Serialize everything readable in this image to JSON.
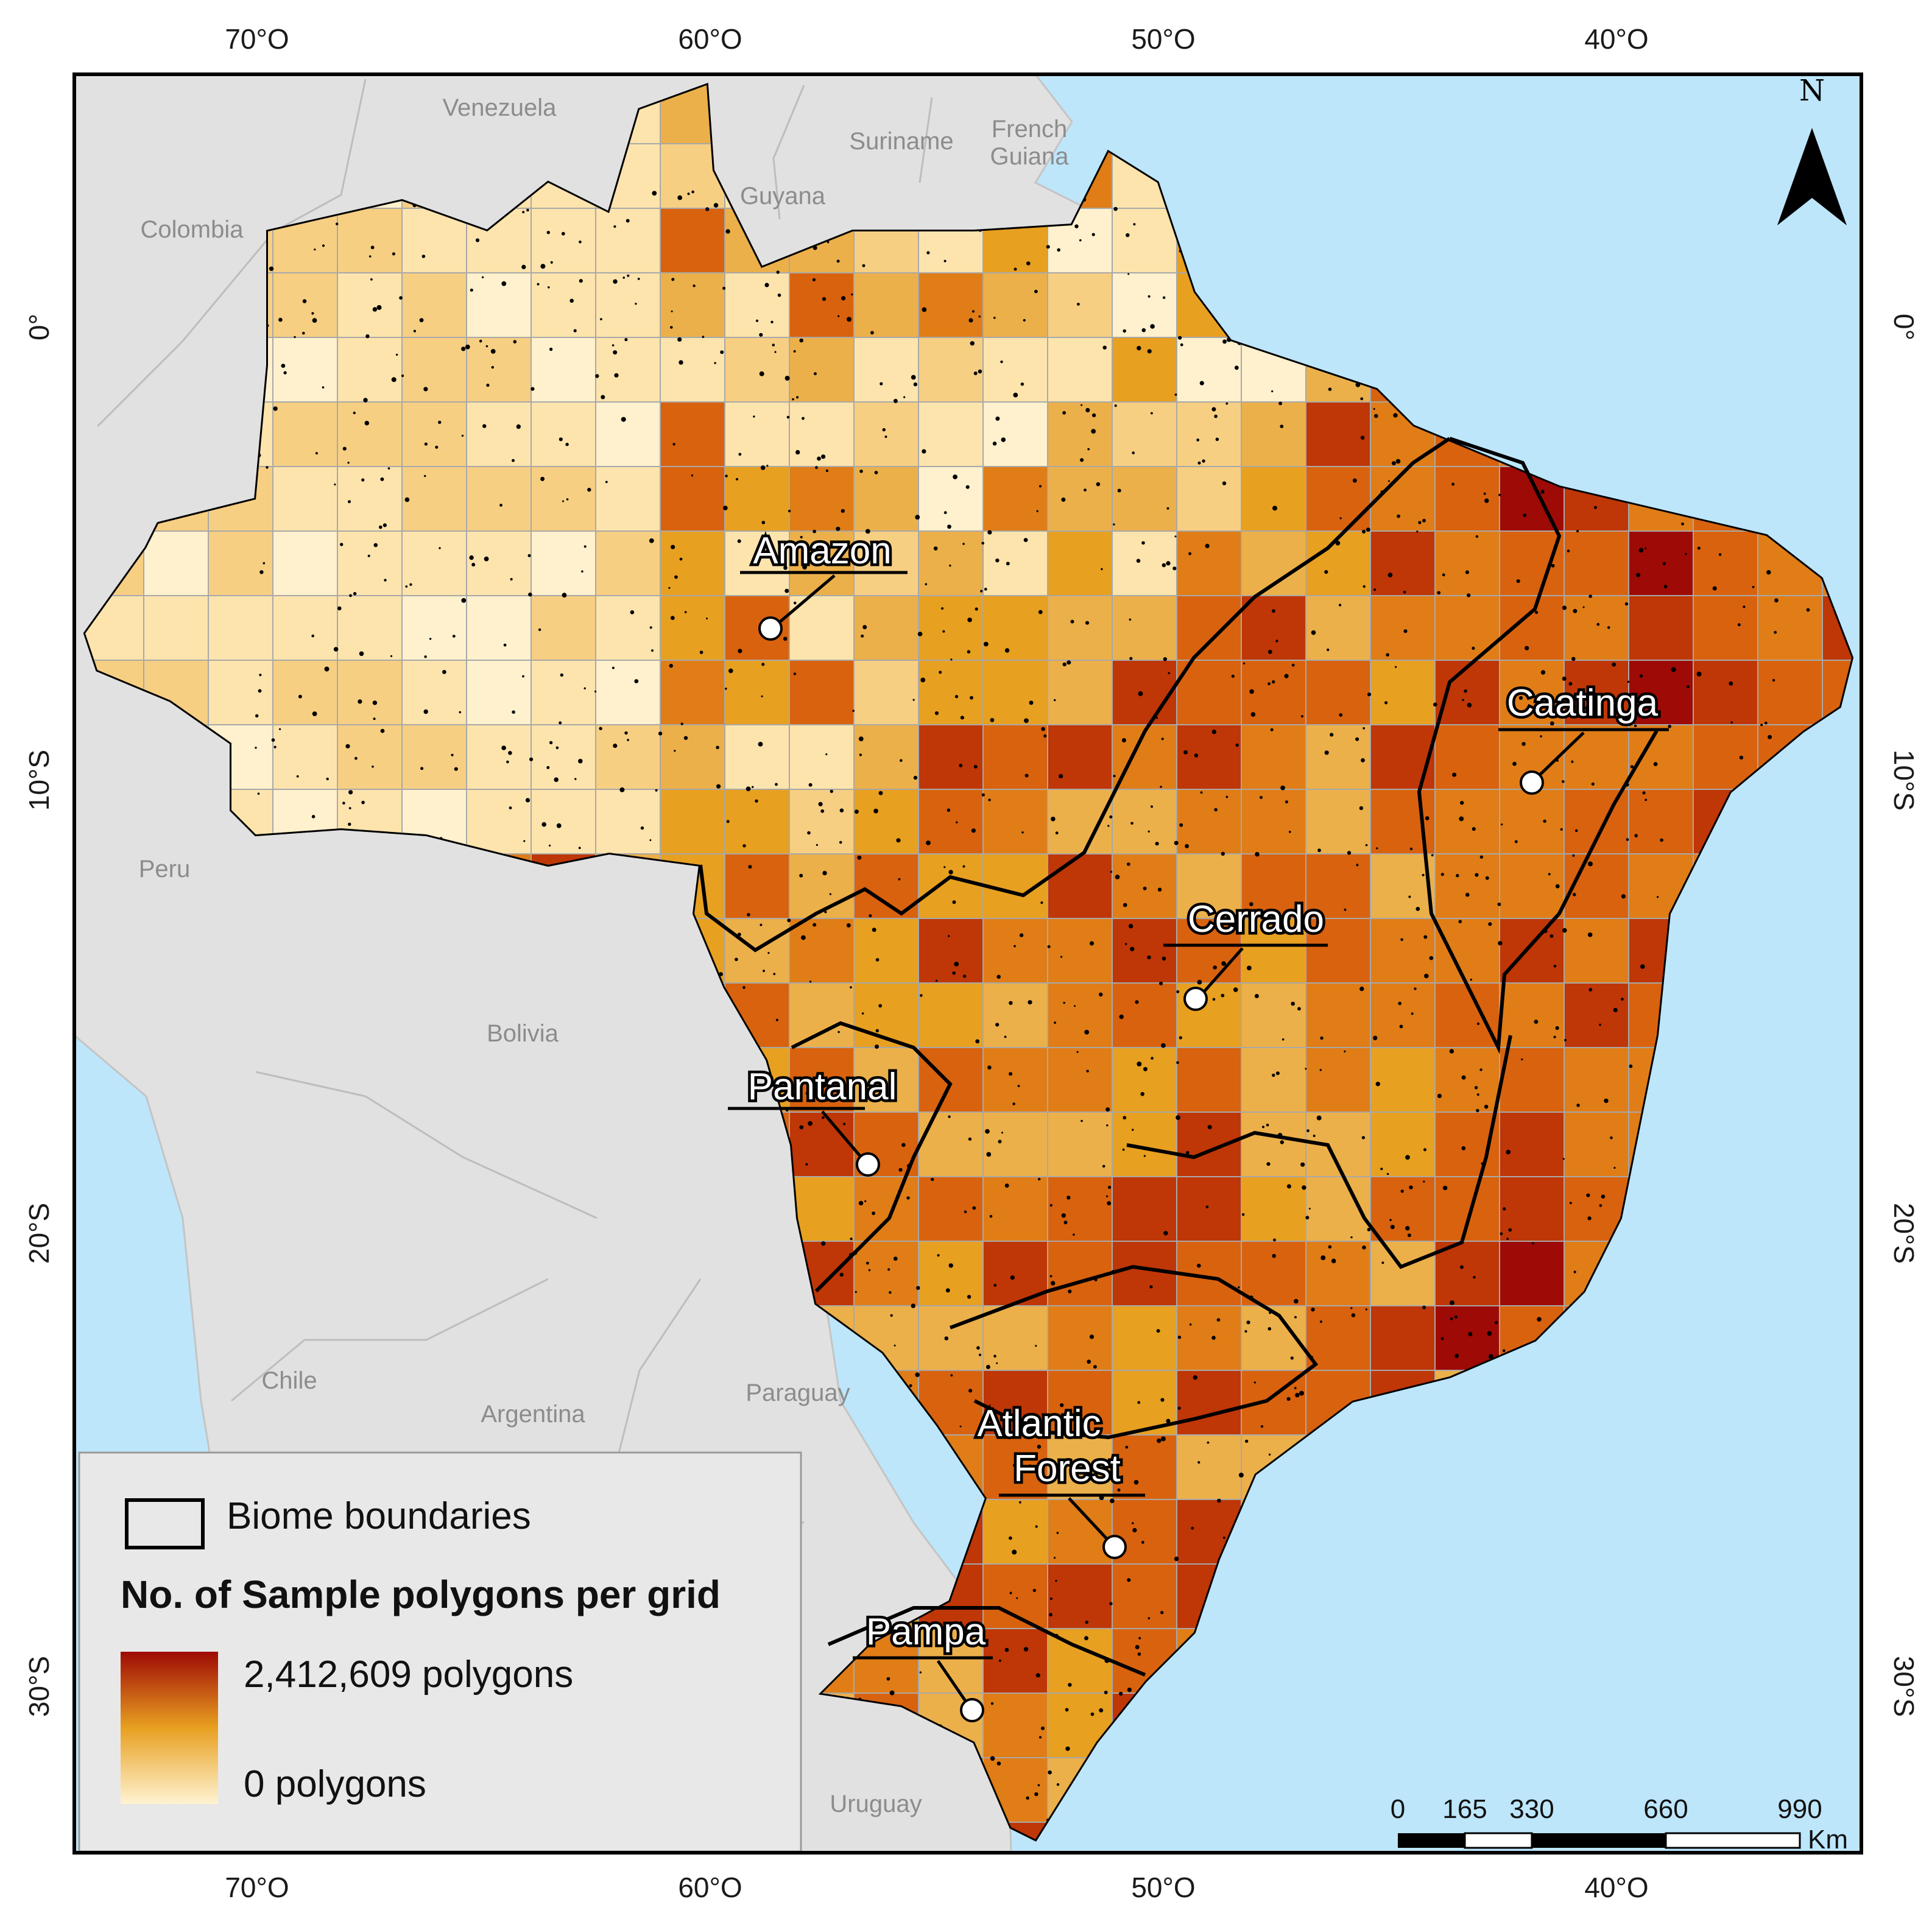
{
  "map": {
    "countries": [
      "Venezuela",
      "Suriname",
      "French Guiana",
      "Guyana",
      "Colombia",
      "Peru",
      "Bolivia",
      "Chile",
      "Argentina",
      "Paraguay",
      "Uruguay"
    ],
    "biomes": [
      "Amazon",
      "Caatinga",
      "Cerrado",
      "Pantanal",
      "Atlantic Forest",
      "Pampa"
    ],
    "lon_ticks": [
      "70°O",
      "60°O",
      "50°O",
      "40°O"
    ],
    "lat_ticks": [
      "0°",
      "10°S",
      "20°S",
      "30°S"
    ],
    "north_arrow": "N"
  },
  "legend": {
    "boundary_label": "Biome boundaries",
    "title": "No. of Sample polygons per grid",
    "max_label": "2,412,609 polygons",
    "min_label": "0 polygons",
    "colors": {
      "max": "#9e0a05",
      "mid": "#e8a020",
      "min": "#fff3d2"
    }
  },
  "scale_bar": {
    "ticks": [
      "0",
      "165",
      "330",
      "660",
      "990"
    ],
    "unit": "Km"
  },
  "colors": {
    "ocean": "#bde6fb",
    "land": "#e1e1e1",
    "grid_dark": "#9e0a05",
    "grid_mid": "#d9620e",
    "grid_light": "#fff1cd"
  }
}
